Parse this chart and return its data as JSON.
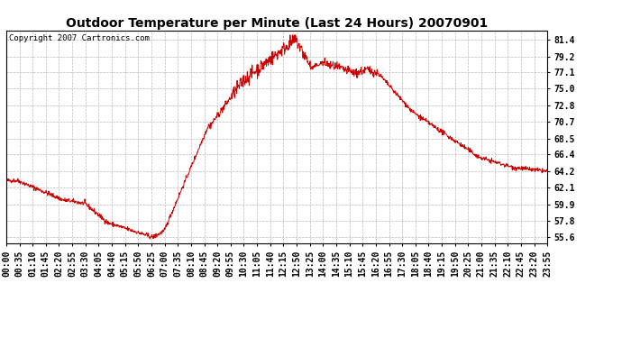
{
  "title": "Outdoor Temperature per Minute (Last 24 Hours) 20070901",
  "copyright_text": "Copyright 2007 Cartronics.com",
  "line_color": "#cc0000",
  "background_color": "#ffffff",
  "plot_bg_color": "#ffffff",
  "grid_color": "#bbbbbb",
  "yticks": [
    55.6,
    57.8,
    59.9,
    62.1,
    64.2,
    66.4,
    68.5,
    70.7,
    72.8,
    75.0,
    77.1,
    79.2,
    81.4
  ],
  "ylim": [
    54.8,
    82.6
  ],
  "xtick_labels": [
    "00:00",
    "00:35",
    "01:10",
    "01:45",
    "02:20",
    "02:55",
    "03:30",
    "04:05",
    "04:40",
    "05:15",
    "05:50",
    "06:25",
    "07:00",
    "07:35",
    "08:10",
    "08:45",
    "09:20",
    "09:55",
    "10:30",
    "11:05",
    "11:40",
    "12:15",
    "12:50",
    "13:25",
    "14:00",
    "14:35",
    "15:10",
    "15:45",
    "16:20",
    "16:55",
    "17:30",
    "18:05",
    "18:40",
    "19:15",
    "19:50",
    "20:25",
    "21:00",
    "21:35",
    "22:10",
    "22:45",
    "23:20",
    "23:55"
  ],
  "title_fontsize": 10,
  "tick_fontsize": 7,
  "copyright_fontsize": 6.5
}
